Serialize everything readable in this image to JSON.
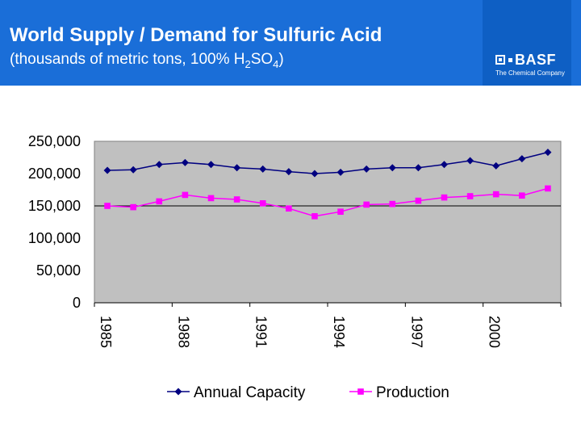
{
  "header": {
    "title": "World Supply / Demand for Sulfuric Acid",
    "subtitle_prefix": "(thousands of metric tons, 100% H",
    "subtitle_sub1": "2",
    "subtitle_mid": "SO",
    "subtitle_sub2": "4",
    "subtitle_suffix": ")"
  },
  "logo": {
    "word": "BASF",
    "tagline": "The Chemical Company"
  },
  "colors": {
    "header_bg": "#1a6ed8",
    "plot_bg": "#c0c0c0",
    "capacity": "#000080",
    "production": "#ff00ff"
  },
  "chart_data": {
    "type": "line",
    "x": [
      1985,
      1986,
      1987,
      1988,
      1989,
      1990,
      1991,
      1992,
      1993,
      1994,
      1995,
      1996,
      1997,
      1998,
      1999,
      2000,
      2001,
      2002
    ],
    "x_tick_labels": [
      "1985",
      "1988",
      "1991",
      "1994",
      "1997",
      "2000"
    ],
    "y_tick_labels": [
      "0",
      "50,000",
      "100,000",
      "150,000",
      "200,000",
      "250,000"
    ],
    "ylim": [
      0,
      250000
    ],
    "series": [
      {
        "name": "Annual Capacity",
        "marker": "diamond",
        "color": "#000080",
        "values": [
          205000,
          206000,
          214000,
          217000,
          214000,
          209000,
          207000,
          203000,
          200000,
          202000,
          207000,
          209000,
          209000,
          214000,
          220000,
          212000,
          223000,
          233000
        ]
      },
      {
        "name": "Production",
        "marker": "square",
        "color": "#ff00ff",
        "values": [
          150000,
          148000,
          157000,
          167000,
          162000,
          160000,
          154000,
          146000,
          134000,
          141000,
          152000,
          153000,
          158000,
          163000,
          165000,
          168000,
          166000,
          177000
        ]
      }
    ],
    "grid": "single horizontal line at 150,000",
    "legend_position": "bottom"
  }
}
